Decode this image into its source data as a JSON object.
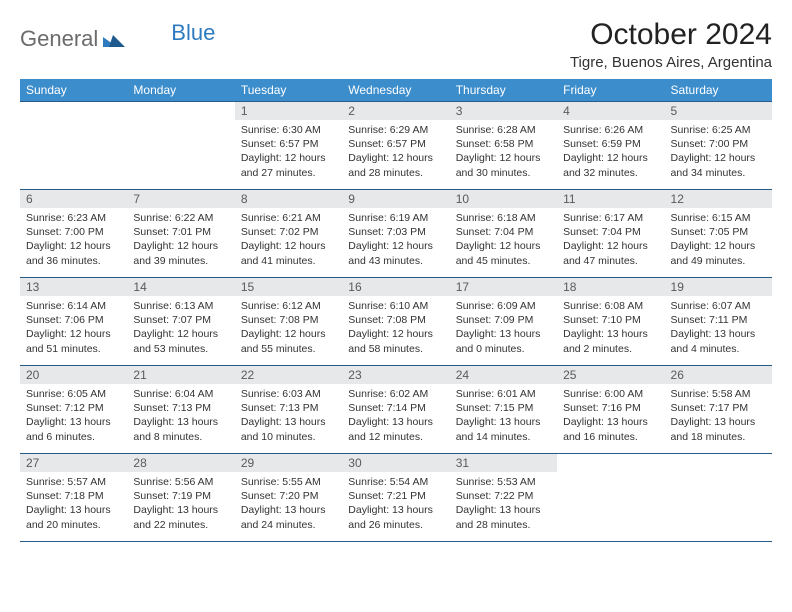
{
  "brand": {
    "part1": "General",
    "part2": "Blue"
  },
  "title": "October 2024",
  "location": "Tigre, Buenos Aires, Argentina",
  "colors": {
    "header_bg": "#3c8dcc",
    "header_fg": "#ffffff",
    "cell_border": "#2a5a8a",
    "daynum_bg": "#e7e8e9",
    "daynum_fg": "#5a5a5a",
    "body_fg": "#333333",
    "brand_gray": "#6b6b6b",
    "brand_blue": "#2f7bbf"
  },
  "weekdays": [
    "Sunday",
    "Monday",
    "Tuesday",
    "Wednesday",
    "Thursday",
    "Friday",
    "Saturday"
  ],
  "grid": [
    [
      {
        "empty": true
      },
      {
        "empty": true
      },
      {
        "n": "1",
        "sr": "6:30 AM",
        "ss": "6:57 PM",
        "dl": "12 hours and 27 minutes."
      },
      {
        "n": "2",
        "sr": "6:29 AM",
        "ss": "6:57 PM",
        "dl": "12 hours and 28 minutes."
      },
      {
        "n": "3",
        "sr": "6:28 AM",
        "ss": "6:58 PM",
        "dl": "12 hours and 30 minutes."
      },
      {
        "n": "4",
        "sr": "6:26 AM",
        "ss": "6:59 PM",
        "dl": "12 hours and 32 minutes."
      },
      {
        "n": "5",
        "sr": "6:25 AM",
        "ss": "7:00 PM",
        "dl": "12 hours and 34 minutes."
      }
    ],
    [
      {
        "n": "6",
        "sr": "6:23 AM",
        "ss": "7:00 PM",
        "dl": "12 hours and 36 minutes."
      },
      {
        "n": "7",
        "sr": "6:22 AM",
        "ss": "7:01 PM",
        "dl": "12 hours and 39 minutes."
      },
      {
        "n": "8",
        "sr": "6:21 AM",
        "ss": "7:02 PM",
        "dl": "12 hours and 41 minutes."
      },
      {
        "n": "9",
        "sr": "6:19 AM",
        "ss": "7:03 PM",
        "dl": "12 hours and 43 minutes."
      },
      {
        "n": "10",
        "sr": "6:18 AM",
        "ss": "7:04 PM",
        "dl": "12 hours and 45 minutes."
      },
      {
        "n": "11",
        "sr": "6:17 AM",
        "ss": "7:04 PM",
        "dl": "12 hours and 47 minutes."
      },
      {
        "n": "12",
        "sr": "6:15 AM",
        "ss": "7:05 PM",
        "dl": "12 hours and 49 minutes."
      }
    ],
    [
      {
        "n": "13",
        "sr": "6:14 AM",
        "ss": "7:06 PM",
        "dl": "12 hours and 51 minutes."
      },
      {
        "n": "14",
        "sr": "6:13 AM",
        "ss": "7:07 PM",
        "dl": "12 hours and 53 minutes."
      },
      {
        "n": "15",
        "sr": "6:12 AM",
        "ss": "7:08 PM",
        "dl": "12 hours and 55 minutes."
      },
      {
        "n": "16",
        "sr": "6:10 AM",
        "ss": "7:08 PM",
        "dl": "12 hours and 58 minutes."
      },
      {
        "n": "17",
        "sr": "6:09 AM",
        "ss": "7:09 PM",
        "dl": "13 hours and 0 minutes."
      },
      {
        "n": "18",
        "sr": "6:08 AM",
        "ss": "7:10 PM",
        "dl": "13 hours and 2 minutes."
      },
      {
        "n": "19",
        "sr": "6:07 AM",
        "ss": "7:11 PM",
        "dl": "13 hours and 4 minutes."
      }
    ],
    [
      {
        "n": "20",
        "sr": "6:05 AM",
        "ss": "7:12 PM",
        "dl": "13 hours and 6 minutes."
      },
      {
        "n": "21",
        "sr": "6:04 AM",
        "ss": "7:13 PM",
        "dl": "13 hours and 8 minutes."
      },
      {
        "n": "22",
        "sr": "6:03 AM",
        "ss": "7:13 PM",
        "dl": "13 hours and 10 minutes."
      },
      {
        "n": "23",
        "sr": "6:02 AM",
        "ss": "7:14 PM",
        "dl": "13 hours and 12 minutes."
      },
      {
        "n": "24",
        "sr": "6:01 AM",
        "ss": "7:15 PM",
        "dl": "13 hours and 14 minutes."
      },
      {
        "n": "25",
        "sr": "6:00 AM",
        "ss": "7:16 PM",
        "dl": "13 hours and 16 minutes."
      },
      {
        "n": "26",
        "sr": "5:58 AM",
        "ss": "7:17 PM",
        "dl": "13 hours and 18 minutes."
      }
    ],
    [
      {
        "n": "27",
        "sr": "5:57 AM",
        "ss": "7:18 PM",
        "dl": "13 hours and 20 minutes."
      },
      {
        "n": "28",
        "sr": "5:56 AM",
        "ss": "7:19 PM",
        "dl": "13 hours and 22 minutes."
      },
      {
        "n": "29",
        "sr": "5:55 AM",
        "ss": "7:20 PM",
        "dl": "13 hours and 24 minutes."
      },
      {
        "n": "30",
        "sr": "5:54 AM",
        "ss": "7:21 PM",
        "dl": "13 hours and 26 minutes."
      },
      {
        "n": "31",
        "sr": "5:53 AM",
        "ss": "7:22 PM",
        "dl": "13 hours and 28 minutes."
      },
      {
        "empty": true
      },
      {
        "empty": true
      }
    ]
  ],
  "labels": {
    "sunrise": "Sunrise:",
    "sunset": "Sunset:",
    "daylight": "Daylight:"
  }
}
